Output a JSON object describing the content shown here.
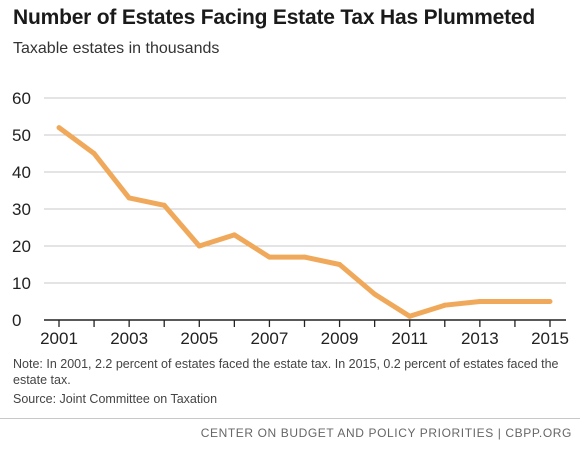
{
  "title": "Number of Estates Facing Estate Tax Has Plummeted",
  "subtitle": "Taxable estates in thousands",
  "note": "Note: In 2001, 2.2 percent of estates faced the estate tax. In 2015, 0.2 percent of estates faced the estate tax.",
  "source": "Source: Joint Committee on Taxation",
  "footer": "CENTER ON BUDGET AND POLICY PRIORITIES | CBPP.ORG",
  "colors": {
    "line": "#f0a95a",
    "grid": "#c9c9c9",
    "axis": "#222222",
    "text": "#222222"
  },
  "chart_data": {
    "type": "line",
    "title": "Number of Estates Facing Estate Tax Has Plummeted",
    "subtitle": "Taxable estates in thousands",
    "x": [
      2001,
      2002,
      2003,
      2004,
      2005,
      2006,
      2007,
      2008,
      2009,
      2010,
      2011,
      2012,
      2013,
      2014,
      2015
    ],
    "series": [
      {
        "values": [
          52,
          45,
          33,
          31,
          20,
          23,
          17,
          17,
          15,
          7,
          1,
          4,
          5,
          5,
          5
        ]
      }
    ],
    "x_tick_labels": [
      "2001",
      "2003",
      "2005",
      "2007",
      "2009",
      "2011",
      "2013",
      "2015"
    ],
    "y_tick_labels": [
      "0",
      "10",
      "20",
      "30",
      "40",
      "50",
      "60"
    ],
    "xlim": [
      2001,
      2015
    ],
    "ylim": [
      0,
      60
    ],
    "grid": "horizontal",
    "legend": "none"
  }
}
